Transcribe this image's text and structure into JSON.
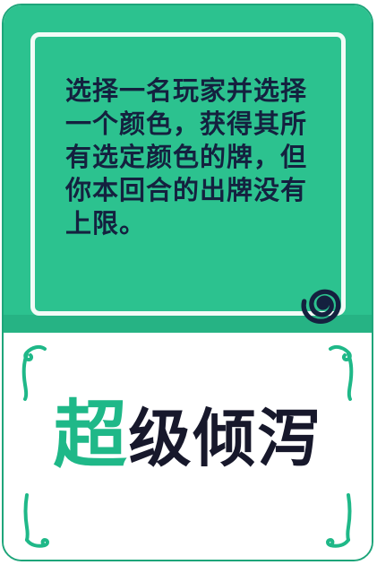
{
  "card": {
    "description": "选择一名玩家并选择一个颜色，获得其所有选定颜色的牌，但你本回合的出牌没有上限。",
    "title_accent": "超",
    "title_rest": "级倾泻",
    "symbol_icon": "spiral-icon",
    "colors": {
      "primary_green": "#2cc28f",
      "text_navy": "#14213f",
      "title_green": "#1fb888",
      "title_dark": "#17182b"
    }
  }
}
